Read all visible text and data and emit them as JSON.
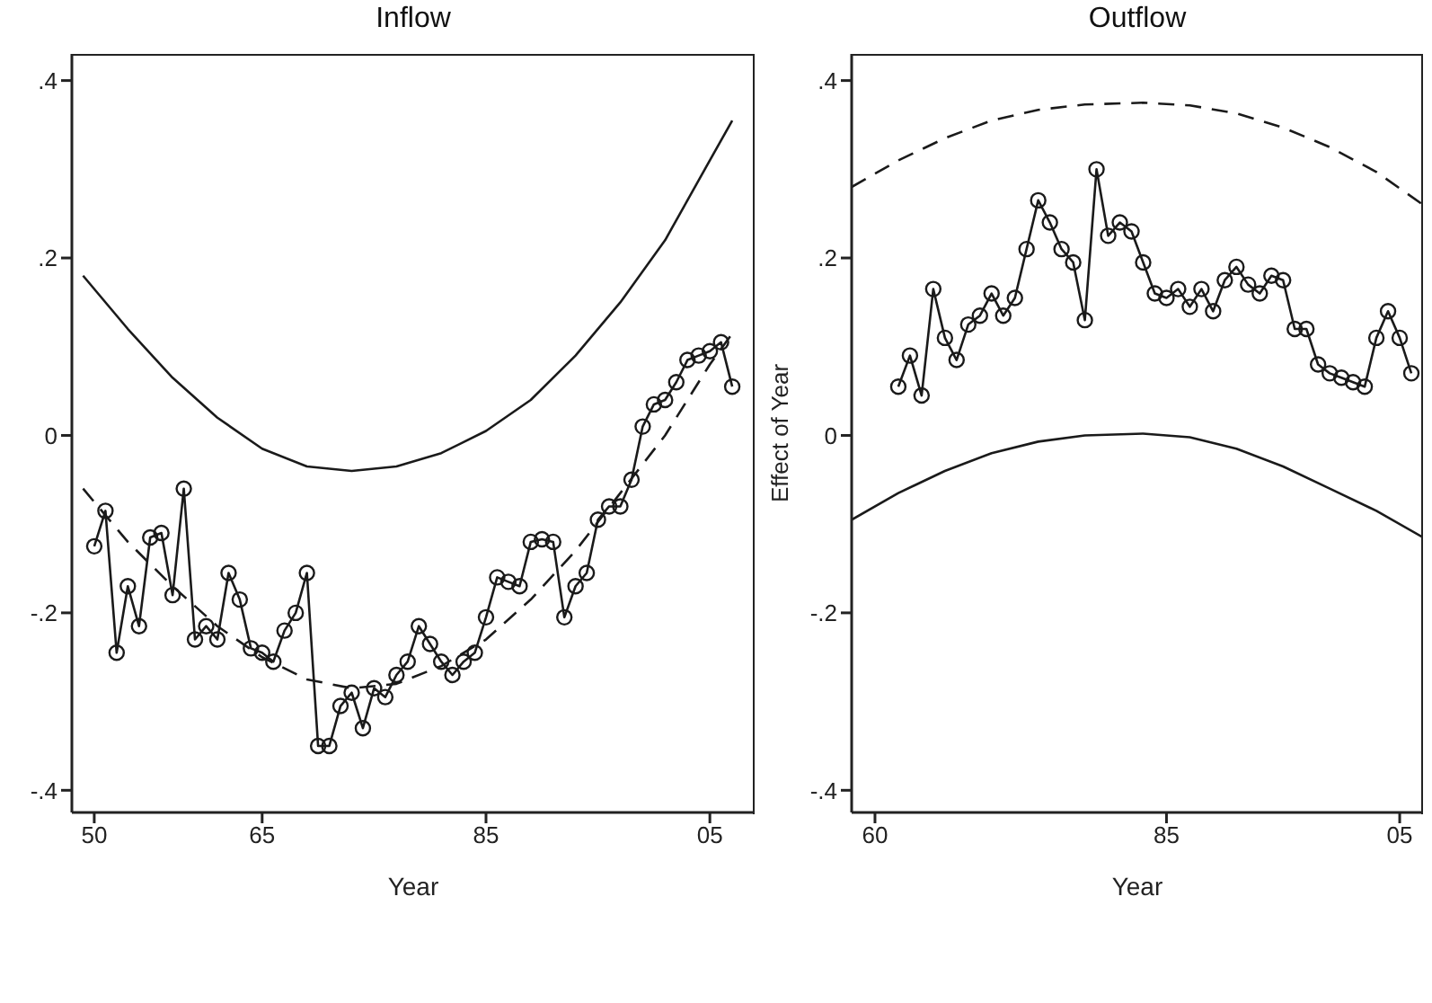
{
  "chart_data": [
    {
      "type": "line",
      "title": "Inflow",
      "xlabel": "Year",
      "xlim": [
        1948,
        2009
      ],
      "xticks": [
        {
          "value": 1950,
          "label": "50"
        },
        {
          "value": 1965,
          "label": "65"
        },
        {
          "value": 1985,
          "label": "85"
        },
        {
          "value": 2005,
          "label": "05"
        }
      ],
      "ylim": [
        -0.425,
        0.43
      ],
      "yticks": [
        {
          "value": -0.4,
          "label": "-.4"
        },
        {
          "value": -0.2,
          "label": "-.2"
        },
        0,
        {
          "value": 0.2,
          "label": ".2"
        },
        {
          "value": 0.4,
          "label": ".4"
        }
      ],
      "grid": false,
      "legend": false,
      "series": [
        {
          "color": "#1a1a1a",
          "marker": "circle",
          "line_style": "solid",
          "x": [
            1950,
            1951,
            1952,
            1953,
            1954,
            1955,
            1956,
            1957,
            1958,
            1959,
            1960,
            1961,
            1962,
            1963,
            1964,
            1965,
            1966,
            1967,
            1968,
            1969,
            1970,
            1971,
            1972,
            1973,
            1974,
            1975,
            1976,
            1977,
            1978,
            1979,
            1980,
            1981,
            1982,
            1983,
            1984,
            1985,
            1986,
            1987,
            1988,
            1989,
            1990,
            1991,
            1992,
            1993,
            1994,
            1995,
            1996,
            1997,
            1998,
            1999,
            2000,
            2001,
            2002,
            2003,
            2004,
            2005,
            2006,
            2007
          ],
          "values": [
            -0.125,
            -0.085,
            -0.245,
            -0.17,
            -0.215,
            -0.115,
            -0.11,
            -0.18,
            -0.06,
            -0.23,
            -0.215,
            -0.23,
            -0.155,
            -0.185,
            -0.24,
            -0.245,
            -0.255,
            -0.22,
            -0.2,
            -0.155,
            -0.35,
            -0.35,
            -0.305,
            -0.29,
            -0.33,
            -0.285,
            -0.295,
            -0.27,
            -0.255,
            -0.215,
            -0.235,
            -0.255,
            -0.27,
            -0.255,
            -0.245,
            -0.205,
            -0.16,
            -0.165,
            -0.17,
            -0.12,
            -0.117,
            -0.12,
            -0.205,
            -0.17,
            -0.155,
            -0.095,
            -0.08,
            -0.08,
            -0.05,
            0.01,
            0.035,
            0.04,
            0.06,
            0.085,
            0.09,
            0.095,
            0.105,
            0.055
          ]
        },
        {
          "color": "#1a1a1a",
          "marker": "none",
          "line_style": "solid",
          "x": [
            1949,
            1953,
            1957,
            1961,
            1965,
            1969,
            1973,
            1977,
            1981,
            1985,
            1989,
            1993,
            1997,
            2001,
            2005,
            2007
          ],
          "values": [
            0.18,
            0.12,
            0.065,
            0.02,
            -0.015,
            -0.035,
            -0.04,
            -0.035,
            -0.02,
            0.005,
            0.04,
            0.09,
            0.15,
            0.22,
            0.31,
            0.355
          ]
        },
        {
          "color": "#1a1a1a",
          "marker": "none",
          "line_style": "dashed",
          "x": [
            1949,
            1953,
            1957,
            1961,
            1965,
            1969,
            1973,
            1977,
            1981,
            1985,
            1989,
            1993,
            1997,
            2001,
            2005,
            2007
          ],
          "values": [
            -0.06,
            -0.12,
            -0.17,
            -0.215,
            -0.25,
            -0.275,
            -0.285,
            -0.28,
            -0.26,
            -0.23,
            -0.185,
            -0.13,
            -0.065,
            0.0,
            0.08,
            0.115
          ]
        }
      ]
    },
    {
      "type": "line",
      "title": "Outflow",
      "xlabel": "Year",
      "ylabel": "Effect of Year",
      "xlim": [
        1958,
        2007
      ],
      "xticks": [
        {
          "value": 1960,
          "label": "60"
        },
        {
          "value": 1985,
          "label": "85"
        },
        {
          "value": 2005,
          "label": "05"
        }
      ],
      "ylim": [
        -0.425,
        0.43
      ],
      "yticks": [
        {
          "value": -0.4,
          "label": "-.4"
        },
        {
          "value": -0.2,
          "label": "-.2"
        },
        0,
        {
          "value": 0.2,
          "label": ".2"
        },
        {
          "value": 0.4,
          "label": ".4"
        }
      ],
      "grid": false,
      "legend": false,
      "series": [
        {
          "color": "#1a1a1a",
          "marker": "circle",
          "line_style": "solid",
          "x": [
            1962,
            1963,
            1964,
            1965,
            1966,
            1967,
            1968,
            1969,
            1970,
            1971,
            1972,
            1973,
            1974,
            1975,
            1976,
            1977,
            1978,
            1979,
            1980,
            1981,
            1982,
            1983,
            1984,
            1985,
            1986,
            1987,
            1988,
            1989,
            1990,
            1991,
            1992,
            1993,
            1994,
            1995,
            1996,
            1997,
            1998,
            1999,
            2000,
            2001,
            2002,
            2003,
            2004,
            2005,
            2006
          ],
          "values": [
            0.055,
            0.09,
            0.045,
            0.165,
            0.11,
            0.085,
            0.125,
            0.135,
            0.16,
            0.135,
            0.155,
            0.21,
            0.265,
            0.24,
            0.21,
            0.195,
            0.13,
            0.3,
            0.225,
            0.24,
            0.23,
            0.195,
            0.16,
            0.155,
            0.165,
            0.145,
            0.165,
            0.14,
            0.175,
            0.19,
            0.17,
            0.16,
            0.18,
            0.175,
            0.12,
            0.12,
            0.08,
            0.07,
            0.065,
            0.06,
            0.055,
            0.11,
            0.14,
            0.11,
            0.07
          ]
        },
        {
          "color": "#1a1a1a",
          "marker": "none",
          "line_style": "dashed",
          "x": [
            1958,
            1962,
            1966,
            1970,
            1974,
            1978,
            1983,
            1987,
            1991,
            1995,
            1999,
            2003,
            2007
          ],
          "values": [
            0.28,
            0.31,
            0.335,
            0.355,
            0.367,
            0.373,
            0.375,
            0.372,
            0.363,
            0.347,
            0.325,
            0.297,
            0.26
          ]
        },
        {
          "color": "#1a1a1a",
          "marker": "none",
          "line_style": "solid",
          "x": [
            1958,
            1962,
            1966,
            1970,
            1974,
            1978,
            1983,
            1987,
            1991,
            1995,
            1999,
            2003,
            2007
          ],
          "values": [
            -0.095,
            -0.065,
            -0.04,
            -0.02,
            -0.007,
            0.0,
            0.002,
            -0.002,
            -0.015,
            -0.035,
            -0.06,
            -0.085,
            -0.115
          ]
        }
      ]
    }
  ]
}
